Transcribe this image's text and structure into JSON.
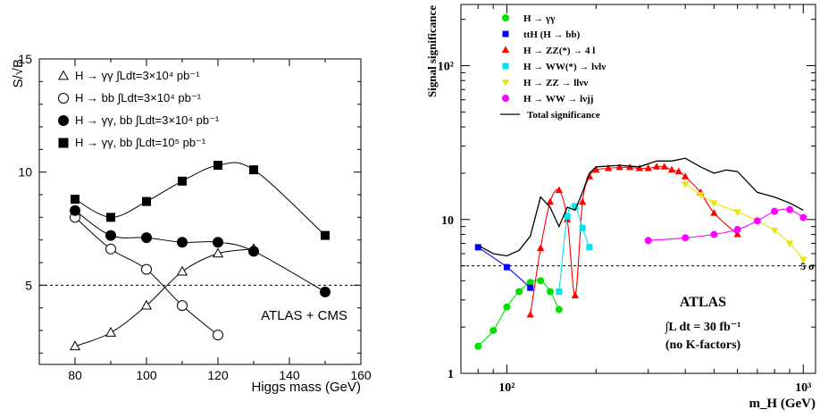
{
  "chart_data": [
    {
      "type": "line",
      "xlabel": "Higgs mass (GeV)",
      "ylabel": "S/√B",
      "xlim": [
        70,
        160
      ],
      "ylim": [
        1.5,
        15
      ],
      "xticks": [
        "80",
        "100",
        "120",
        "140",
        "160"
      ],
      "yticks": [
        "5",
        "10",
        "15"
      ],
      "reference_line": {
        "y": 5,
        "style": "dashed"
      },
      "annotation": "ATLAS + CMS",
      "legend_position": "top-left",
      "series": [
        {
          "name": "H → γγ ∫Ldt=3×10⁴ pb⁻¹",
          "marker": "open-triangle",
          "x": [
            80,
            90,
            100,
            110,
            120,
            130
          ],
          "y": [
            2.3,
            2.9,
            4.1,
            5.6,
            6.4,
            6.6
          ]
        },
        {
          "name": "H → bb ∫Ldt=3×10⁴ pb⁻¹",
          "marker": "open-circle",
          "x": [
            80,
            90,
            100,
            110,
            120
          ],
          "y": [
            8.0,
            6.6,
            5.7,
            4.1,
            2.8
          ]
        },
        {
          "name": "H → γγ, bb ∫Ldt=3×10⁴ pb⁻¹",
          "marker": "filled-circle",
          "x": [
            80,
            90,
            100,
            110,
            120,
            130,
            150
          ],
          "y": [
            8.3,
            7.2,
            7.1,
            6.9,
            6.9,
            6.5,
            4.7
          ]
        },
        {
          "name": "H → γγ, bb ∫Ldt=10⁵ pb⁻¹",
          "marker": "filled-square",
          "x": [
            80,
            90,
            100,
            110,
            120,
            130,
            150
          ],
          "y": [
            8.8,
            8.0,
            8.7,
            9.6,
            10.3,
            10.1,
            7.2
          ]
        }
      ]
    },
    {
      "type": "line",
      "xscale": "log",
      "yscale": "log",
      "xlabel": "m_H (GeV)",
      "ylabel": "Signal significance",
      "xlim": [
        70,
        1100
      ],
      "ylim": [
        1,
        250
      ],
      "xticks": [
        "10²",
        "10³"
      ],
      "yticks": [
        "1",
        "10",
        "10²"
      ],
      "reference_line": {
        "y": 5,
        "style": "dashed",
        "label": "5 σ"
      },
      "annotations": [
        "ATLAS",
        "∫L dt = 30 fb⁻¹",
        "(no K-factors)"
      ],
      "legend_position": "top-left",
      "series": [
        {
          "name": "H → γγ",
          "color": "#00e000",
          "marker": "circle",
          "x": [
            80,
            90,
            100,
            110,
            120,
            130,
            140,
            150
          ],
          "y": [
            1.5,
            1.9,
            2.7,
            3.4,
            3.9,
            4.0,
            3.4,
            2.6
          ]
        },
        {
          "name": "ttH (H → bb)",
          "color": "#0000ff",
          "marker": "square",
          "x": [
            80,
            100,
            120
          ],
          "y": [
            6.6,
            4.9,
            3.6
          ]
        },
        {
          "name": "H → ZZ(*) → 4 l",
          "color": "#ff0000",
          "marker": "triangle",
          "x": [
            120,
            130,
            140,
            150,
            160,
            170,
            180,
            190,
            200,
            220,
            240,
            260,
            280,
            300,
            320,
            340,
            360,
            380,
            400,
            450,
            500,
            600
          ],
          "y": [
            2.4,
            6.5,
            13.0,
            15.5,
            10.0,
            3.2,
            13.0,
            19.0,
            21.0,
            21.5,
            21.8,
            21.8,
            21.5,
            21.5,
            22.0,
            22.0,
            21.0,
            20.5,
            19.0,
            15.0,
            11.0,
            8.0
          ]
        },
        {
          "name": "H → WW(*) → lνlν",
          "color": "#00e5ee",
          "marker": "square",
          "x": [
            150,
            160,
            170,
            180,
            190
          ],
          "y": [
            3.4,
            10.5,
            12.2,
            8.8,
            6.6
          ]
        },
        {
          "name": "H → ZZ → llνν",
          "color": "#e6e600",
          "marker": "triangle-down",
          "x": [
            400,
            450,
            500,
            600,
            700,
            800,
            900,
            1000
          ],
          "y": [
            17.0,
            14.5,
            12.8,
            11.2,
            9.8,
            8.5,
            7.0,
            5.5
          ]
        },
        {
          "name": "H → WW → lνjj",
          "color": "#ff00ff",
          "marker": "circle",
          "x": [
            300,
            400,
            500,
            600,
            700,
            800,
            900,
            1000
          ],
          "y": [
            7.3,
            7.6,
            8.0,
            8.6,
            9.8,
            11.3,
            11.6,
            10.3
          ]
        },
        {
          "name": "Total significance",
          "color": "#000000",
          "marker": "none",
          "x": [
            80,
            90,
            100,
            110,
            120,
            130,
            140,
            150,
            160,
            170,
            180,
            190,
            200,
            240,
            280,
            320,
            360,
            400,
            450,
            500,
            550,
            600,
            700,
            800,
            900,
            1000
          ],
          "y": [
            6.8,
            6.0,
            5.8,
            6.3,
            7.8,
            14.0,
            12.0,
            9.0,
            12.0,
            11.5,
            15.0,
            20.0,
            22.0,
            22.5,
            22.0,
            24.0,
            24.0,
            25.0,
            22.0,
            20.0,
            21.0,
            20.5,
            15.0,
            14.0,
            12.8,
            11.5
          ]
        }
      ]
    }
  ]
}
